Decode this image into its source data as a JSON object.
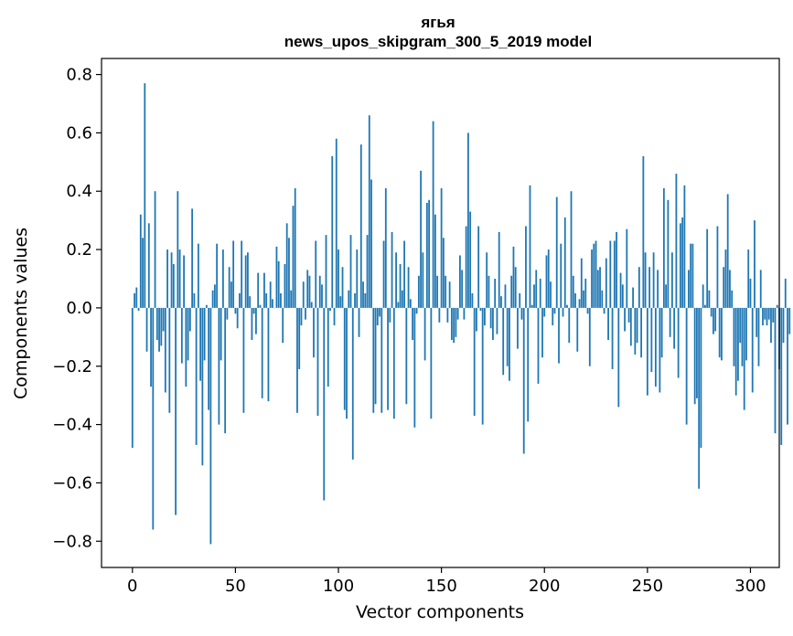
{
  "chart_data": {
    "type": "bar",
    "title": "ягья",
    "subtitle": "news_upos_skipgram_300_5_2019 model",
    "xlabel": "Vector components",
    "ylabel": "Components values",
    "xlim": [
      -15,
      314
    ],
    "ylim": [
      -0.89,
      0.855
    ],
    "xticks": [
      0,
      50,
      100,
      150,
      200,
      250,
      300
    ],
    "xtick_labels": [
      "0",
      "50",
      "100",
      "150",
      "200",
      "250",
      "300"
    ],
    "yticks": [
      -0.8,
      -0.6,
      -0.4,
      -0.2,
      0.0,
      0.2,
      0.4,
      0.6,
      0.8
    ],
    "ytick_labels": [
      "−0.8",
      "−0.6",
      "−0.4",
      "−0.2",
      "0.0",
      "0.2",
      "0.4",
      "0.6",
      "0.8"
    ],
    "bar_color": "#1f77b4",
    "grid": false,
    "values": [
      -0.48,
      0.05,
      0.07,
      -0.01,
      0.32,
      0.24,
      0.77,
      -0.15,
      0.29,
      -0.27,
      -0.76,
      0.4,
      -0.11,
      -0.15,
      -0.13,
      -0.08,
      -0.29,
      0.2,
      -0.36,
      0.19,
      0.15,
      -0.71,
      0.4,
      0.2,
      -0.19,
      0.18,
      -0.27,
      -0.18,
      -0.08,
      0.34,
      0.05,
      -0.47,
      0.22,
      -0.25,
      -0.54,
      -0.18,
      0.01,
      -0.35,
      -0.81,
      0.06,
      0.08,
      0.22,
      -0.4,
      -0.18,
      0.2,
      -0.43,
      -0.04,
      0.14,
      0.09,
      0.23,
      -0.02,
      -0.07,
      0.05,
      0.23,
      -0.36,
      0.18,
      0.19,
      0.04,
      -0.11,
      -0.02,
      -0.09,
      0.12,
      0.01,
      -0.31,
      0.12,
      0.05,
      -0.32,
      0.09,
      0.03,
      0.0,
      0.21,
      0.16,
      0.05,
      -0.12,
      0.15,
      0.29,
      0.24,
      0.06,
      0.35,
      0.41,
      -0.36,
      -0.21,
      -0.06,
      0.09,
      -0.04,
      0.13,
      0.11,
      0.02,
      -0.17,
      0.23,
      -0.37,
      0.11,
      0.08,
      -0.66,
      0.25,
      -0.27,
      -0.01,
      0.52,
      -0.06,
      0.58,
      0.2,
      0.04,
      0.14,
      -0.35,
      -0.38,
      0.06,
      0.25,
      -0.52,
      0.05,
      0.2,
      -0.1,
      0.56,
      0.09,
      0.05,
      0.25,
      0.66,
      0.44,
      -0.36,
      -0.33,
      -0.06,
      -0.03,
      -0.36,
      0.23,
      0.41,
      -0.35,
      -0.05,
      0.26,
      -0.38,
      0.19,
      0.02,
      0.15,
      0.06,
      0.23,
      -0.33,
      0.14,
      0.03,
      -0.11,
      -0.41,
      -0.02,
      0.11,
      0.47,
      0.19,
      -0.18,
      0.36,
      0.37,
      -0.38,
      0.64,
      0.32,
      0.11,
      -0.05,
      0.41,
      0.24,
      0.11,
      -0.05,
      0.09,
      -0.11,
      -0.12,
      -0.1,
      -0.04,
      0.18,
      0.13,
      -0.04,
      0.28,
      0.6,
      0.33,
      0.05,
      -0.37,
      -0.08,
      0.28,
      -0.01,
      -0.4,
      -0.06,
      0.19,
      0.11,
      -0.07,
      -0.11,
      0.1,
      -0.09,
      0.26,
      0.04,
      -0.23,
      0.08,
      -0.2,
      -0.25,
      0.11,
      0.21,
      0.14,
      -0.14,
      0.05,
      -0.04,
      -0.5,
      0.28,
      -0.39,
      0.42,
      0.01,
      0.08,
      0.13,
      -0.26,
      0.1,
      -0.17,
      -0.03,
      0.18,
      0.2,
      0.09,
      -0.06,
      -0.02,
      0.38,
      -0.19,
      0.22,
      -0.03,
      0.31,
      0.01,
      -0.12,
      0.4,
      0.11,
      0.05,
      -0.15,
      0.03,
      0.17,
      0.06,
      0.1,
      -0.02,
      -0.2,
      0.2,
      0.22,
      0.23,
      0.13,
      0.14,
      0.06,
      -0.02,
      0.17,
      -0.11,
      0.23,
      -0.21,
      0.23,
      0.26,
      -0.34,
      0.12,
      0.08,
      -0.08,
      0.27,
      -0.05,
      -0.13,
      0.07,
      -0.16,
      -0.12,
      0.14,
      -0.17,
      0.52,
      0.19,
      -0.3,
      0.14,
      -0.22,
      0.19,
      -0.27,
      0.13,
      -0.29,
      -0.17,
      0.41,
      0.08,
      0.37,
      -0.1,
      0.19,
      -0.14,
      0.46,
      -0.24,
      0.29,
      0.31,
      0.42,
      -0.4,
      0.13,
      0.22,
      0.22,
      -0.33,
      -0.31,
      -0.62,
      -0.48,
      0.08,
      0.01,
      0.27,
      0.06,
      -0.03,
      -0.09,
      -0.08,
      0.28,
      -0.17,
      -0.18,
      0.14,
      0.2,
      0.39,
      0.13,
      0.06,
      -0.2,
      -0.3,
      -0.25,
      -0.12,
      -0.2,
      -0.35,
      -0.18,
      0.2,
      0.1,
      -0.29,
      0.3,
      -0.1,
      -0.2,
      0.13,
      -0.06,
      -0.04,
      -0.06,
      -0.04,
      -0.12,
      -0.05,
      -0.43,
      0.01,
      -0.21,
      -0.47,
      -0.12,
      0.1,
      -0.4,
      -0.09
    ]
  }
}
